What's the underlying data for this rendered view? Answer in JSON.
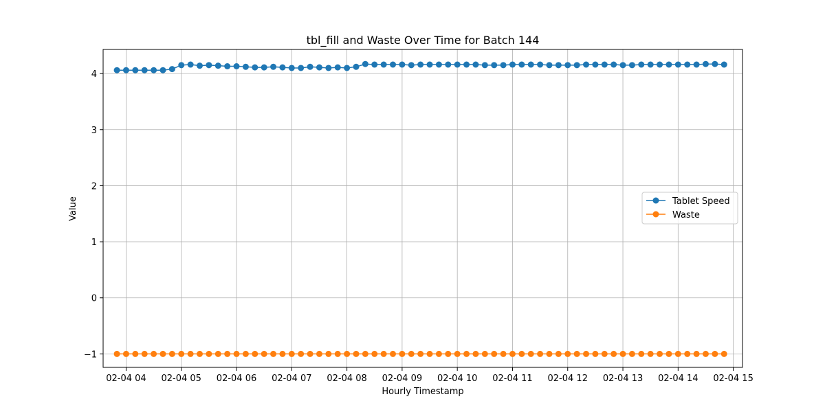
{
  "chart_data": {
    "type": "line",
    "title": "tbl_fill and Waste Over Time for Batch 144",
    "xlabel": "Hourly Timestamp",
    "ylabel": "Value",
    "x_start": "02-04 03:50",
    "x_step_minutes": 10,
    "x_ticks": [
      "02-04 04",
      "02-04 05",
      "02-04 06",
      "02-04 07",
      "02-04 08",
      "02-04 09",
      "02-04 10",
      "02-04 11",
      "02-04 12",
      "02-04 13",
      "02-04 14",
      "02-04 15"
    ],
    "xlim": [
      "02-04 03:35",
      "02-04 15:10"
    ],
    "y_ticks": [
      "−1",
      "0",
      "1",
      "2",
      "3",
      "4"
    ],
    "ylim": [
      -1.24,
      4.43
    ],
    "grid": true,
    "legend_position": "center-right",
    "series": [
      {
        "name": "Tablet Speed",
        "color": "#1f77b4",
        "marker": "circle",
        "values": [
          4.06,
          4.06,
          4.06,
          4.06,
          4.06,
          4.06,
          4.08,
          4.15,
          4.16,
          4.14,
          4.15,
          4.14,
          4.13,
          4.13,
          4.12,
          4.11,
          4.11,
          4.12,
          4.11,
          4.1,
          4.1,
          4.12,
          4.11,
          4.1,
          4.11,
          4.1,
          4.12,
          4.17,
          4.16,
          4.16,
          4.16,
          4.16,
          4.15,
          4.16,
          4.16,
          4.16,
          4.16,
          4.16,
          4.16,
          4.16,
          4.15,
          4.15,
          4.15,
          4.16,
          4.16,
          4.16,
          4.16,
          4.15,
          4.15,
          4.15,
          4.15,
          4.16,
          4.16,
          4.16,
          4.16,
          4.15,
          4.15,
          4.16,
          4.16,
          4.16,
          4.16,
          4.16,
          4.16,
          4.16,
          4.17,
          4.17,
          4.16
        ]
      },
      {
        "name": "Waste",
        "color": "#ff7f0e",
        "marker": "circle",
        "values": [
          -1,
          -1,
          -1,
          -1,
          -1,
          -1,
          -1,
          -1,
          -1,
          -1,
          -1,
          -1,
          -1,
          -1,
          -1,
          -1,
          -1,
          -1,
          -1,
          -1,
          -1,
          -1,
          -1,
          -1,
          -1,
          -1,
          -1,
          -1,
          -1,
          -1,
          -1,
          -1,
          -1,
          -1,
          -1,
          -1,
          -1,
          -1,
          -1,
          -1,
          -1,
          -1,
          -1,
          -1,
          -1,
          -1,
          -1,
          -1,
          -1,
          -1,
          -1,
          -1,
          -1,
          -1,
          -1,
          -1,
          -1,
          -1,
          -1,
          -1,
          -1,
          -1,
          -1,
          -1,
          -1,
          -1,
          -1
        ]
      }
    ]
  }
}
